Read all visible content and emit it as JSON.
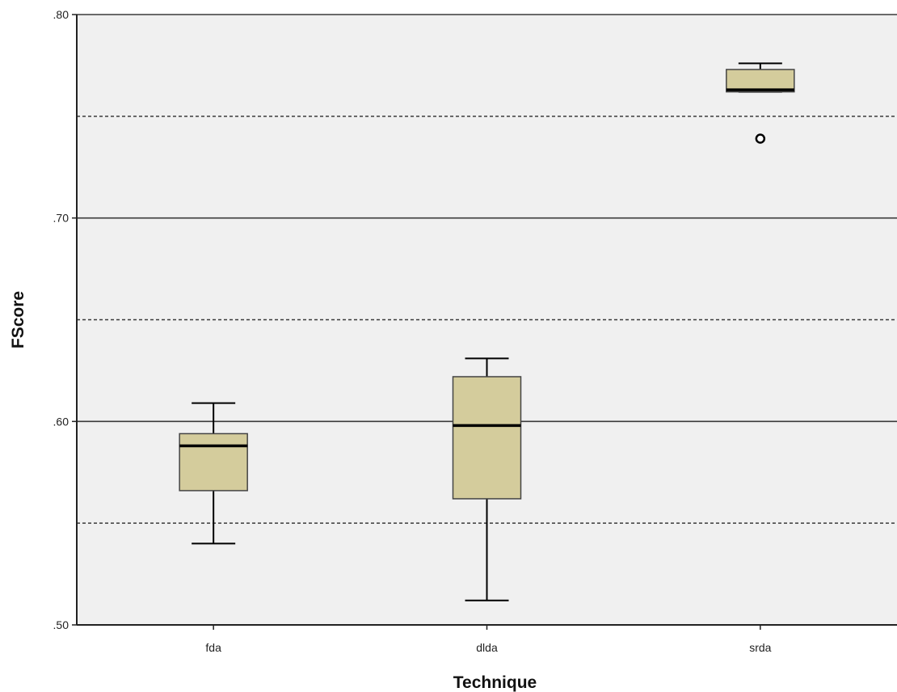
{
  "chart_data": {
    "type": "box",
    "title": "",
    "xlabel": "Technique",
    "ylabel": "FScore",
    "categories": [
      "fda",
      "dlda",
      "srda"
    ],
    "ylim": [
      0.5,
      0.8
    ],
    "yticks": [
      0.5,
      0.6,
      0.7,
      0.8
    ],
    "ytick_labels": [
      ".50",
      ".60",
      ".70",
      ".80"
    ],
    "minor_gridlines": [
      0.55,
      0.65,
      0.75
    ],
    "grid": true,
    "boxes": [
      {
        "category": "fda",
        "whisker_low": 0.54,
        "q1": 0.566,
        "median": 0.588,
        "q3": 0.594,
        "whisker_high": 0.609,
        "outliers": []
      },
      {
        "category": "dlda",
        "whisker_low": 0.512,
        "q1": 0.562,
        "median": 0.598,
        "q3": 0.622,
        "whisker_high": 0.631,
        "outliers": []
      },
      {
        "category": "srda",
        "whisker_low": 0.762,
        "q1": 0.762,
        "median": 0.763,
        "q3": 0.773,
        "whisker_high": 0.776,
        "outliers": [
          0.739
        ]
      }
    ],
    "colors": {
      "box_fill": "#d4cc9c",
      "box_stroke": "#444444",
      "plot_bg": "#f0f0f0",
      "major_grid": "#3a3a3a",
      "minor_grid": "#3a3a3a"
    }
  }
}
